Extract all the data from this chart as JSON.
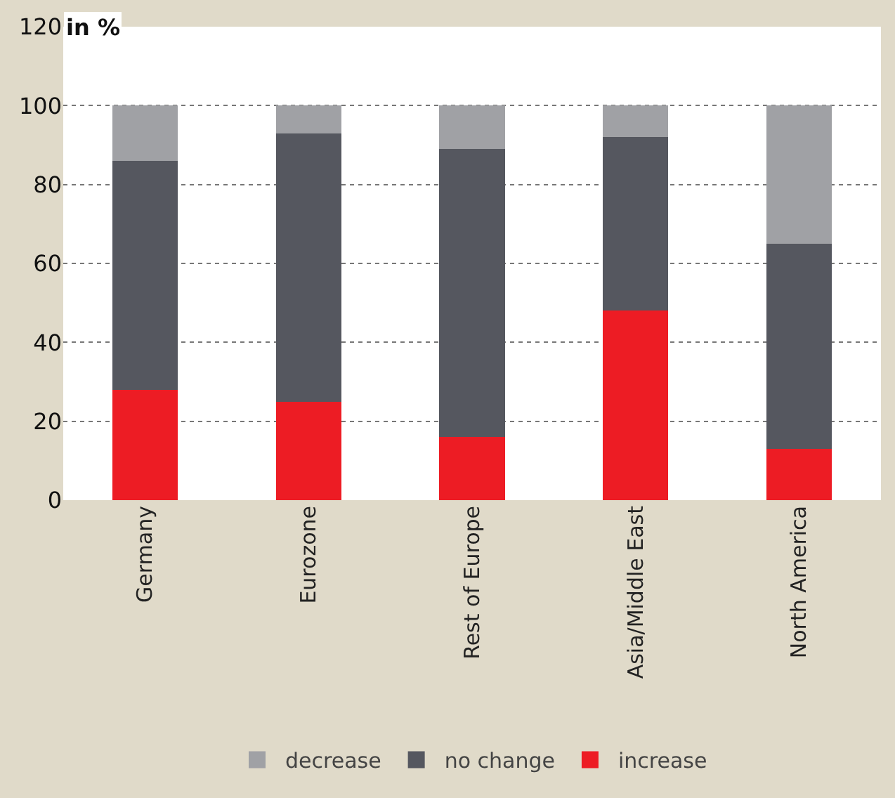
{
  "chart_data": {
    "type": "bar",
    "stacked": true,
    "ylabel": "in %",
    "categories": [
      "Germany",
      "Eurozone",
      "Rest of Europe",
      "Asia/Middle East",
      "North America"
    ],
    "series": [
      {
        "name": "increase",
        "color": "#ed1c24",
        "values": [
          28,
          25,
          16,
          48,
          13
        ]
      },
      {
        "name": "no change",
        "color": "#55575f",
        "values": [
          58,
          68,
          73,
          44,
          52
        ]
      },
      {
        "name": "decrease",
        "color": "#a0a1a5",
        "values": [
          14,
          7,
          11,
          8,
          35
        ]
      }
    ],
    "ylim": [
      0,
      120
    ],
    "yticks": [
      0,
      20,
      40,
      60,
      80,
      100,
      120
    ],
    "grid": "y",
    "legend": "bottom"
  }
}
